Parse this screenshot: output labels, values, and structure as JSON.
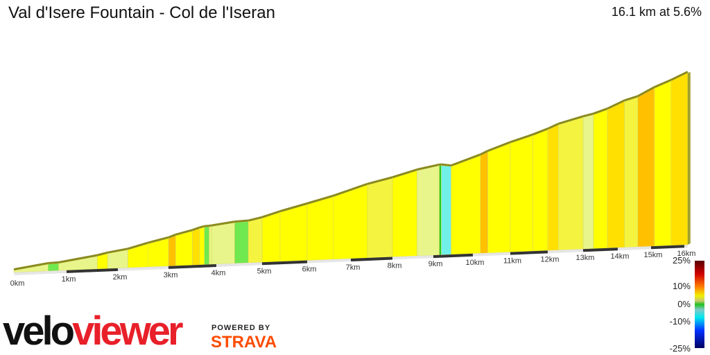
{
  "title": "Val d'Isere Fountain - Col de l'Iseran",
  "summary": "16.1 km at 5.6%",
  "logo": {
    "velo": "velo",
    "viewer": "viewer",
    "powered_by": "POWERED BY",
    "strava": "STRAVA"
  },
  "colors": {
    "brand_red": "#e8202a",
    "strava_orange": "#fc4c02"
  },
  "chart_data": {
    "type": "area",
    "title": "Val d'Isere Fountain - Col de l'Iseran",
    "distance_km": 16.1,
    "avg_gradient_pct": 5.6,
    "x_ticks": [
      "0km",
      "1km",
      "2km",
      "3km",
      "4km",
      "5km",
      "6km",
      "7km",
      "8km",
      "9km",
      "10km",
      "11km",
      "12km",
      "13km",
      "14km",
      "15km",
      "16km"
    ],
    "segments": [
      [
        0,
        0.65,
        4
      ],
      [
        0.65,
        0.85,
        1
      ],
      [
        0.85,
        1.6,
        4
      ],
      [
        1.6,
        1.8,
        6
      ],
      [
        1.8,
        2.2,
        4
      ],
      [
        2.2,
        2.6,
        7
      ],
      [
        2.6,
        3.0,
        6
      ],
      [
        3.0,
        3.15,
        9
      ],
      [
        3.15,
        3.5,
        6
      ],
      [
        3.5,
        3.65,
        8
      ],
      [
        3.65,
        3.75,
        6
      ],
      [
        3.75,
        3.85,
        1
      ],
      [
        3.85,
        3.9,
        3
      ],
      [
        3.9,
        4.4,
        3
      ],
      [
        4.4,
        4.7,
        1
      ],
      [
        4.7,
        5.0,
        5
      ],
      [
        5.0,
        5.4,
        7
      ],
      [
        5.4,
        6.0,
        6
      ],
      [
        6.0,
        6.6,
        6
      ],
      [
        6.6,
        7.4,
        7
      ],
      [
        7.4,
        8.0,
        5
      ],
      [
        8.0,
        8.6,
        6
      ],
      [
        8.6,
        9.15,
        4
      ],
      [
        9.15,
        9.2,
        0
      ],
      [
        9.2,
        9.45,
        -3
      ],
      [
        9.45,
        10.2,
        7
      ],
      [
        10.2,
        10.4,
        9
      ],
      [
        10.4,
        11.0,
        7
      ],
      [
        11.0,
        11.6,
        6
      ],
      [
        11.6,
        12.0,
        7
      ],
      [
        12.0,
        12.3,
        8
      ],
      [
        12.3,
        13.0,
        5
      ],
      [
        13.0,
        13.3,
        4
      ],
      [
        13.3,
        13.7,
        6
      ],
      [
        13.7,
        14.2,
        8
      ],
      [
        14.2,
        14.6,
        5
      ],
      [
        14.6,
        15.1,
        9
      ],
      [
        15.1,
        15.6,
        7
      ],
      [
        15.6,
        16.1,
        8
      ]
    ],
    "segment_fields": [
      "start_km",
      "end_km",
      "gradient_pct"
    ],
    "legend": {
      "labels": [
        "25%",
        "10%",
        "0%",
        "-10%",
        "-25%"
      ],
      "range": [
        -25,
        25
      ]
    }
  }
}
